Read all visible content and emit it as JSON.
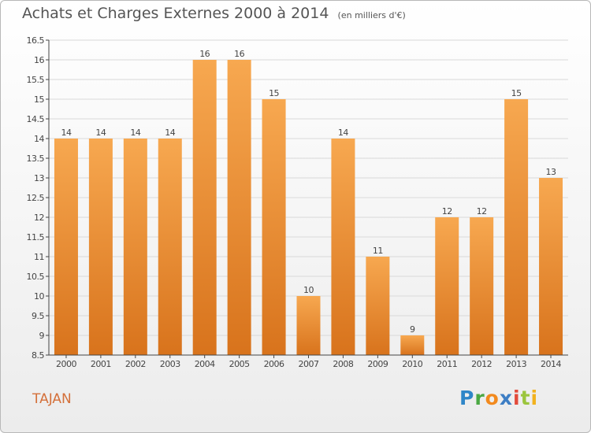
{
  "header": {
    "title": "Achats et Charges Externes 2000 à 2014",
    "subtitle": "(en milliers d'€)"
  },
  "footer": {
    "city": "TAJAN",
    "logo_letters": [
      "P",
      "r",
      "o",
      "x",
      "i",
      "t",
      "i"
    ]
  },
  "colors": {
    "bar_top": "#f7a850",
    "bar_bottom": "#d8731c",
    "grid": "#d9d9d9",
    "axis": "#444444",
    "label": "#444444"
  },
  "chart_data": {
    "type": "bar",
    "title": "Achats et Charges Externes 2000 à 2014",
    "subtitle": "(en milliers d'€)",
    "categories": [
      "2000",
      "2001",
      "2002",
      "2003",
      "2004",
      "2005",
      "2006",
      "2007",
      "2008",
      "2009",
      "2010",
      "2011",
      "2012",
      "2013",
      "2014"
    ],
    "values": [
      14,
      14,
      14,
      14,
      16,
      16,
      15,
      10,
      14,
      11,
      9,
      12,
      12,
      15,
      13
    ],
    "value_labels": [
      "14",
      "14",
      "14",
      "14",
      "16",
      "16",
      "15",
      "10",
      "14",
      "11",
      "9",
      "12",
      "12",
      "15",
      "13"
    ],
    "yticks": [
      "8.5",
      "9",
      "9.5",
      "10",
      "10.5",
      "11",
      "11.5",
      "12",
      "12.5",
      "13",
      "13.5",
      "14",
      "14.5",
      "15",
      "15.5",
      "16",
      "16.5"
    ],
    "ylim": [
      8.5,
      16.5
    ],
    "grid": true,
    "xlabel": "",
    "ylabel": ""
  }
}
